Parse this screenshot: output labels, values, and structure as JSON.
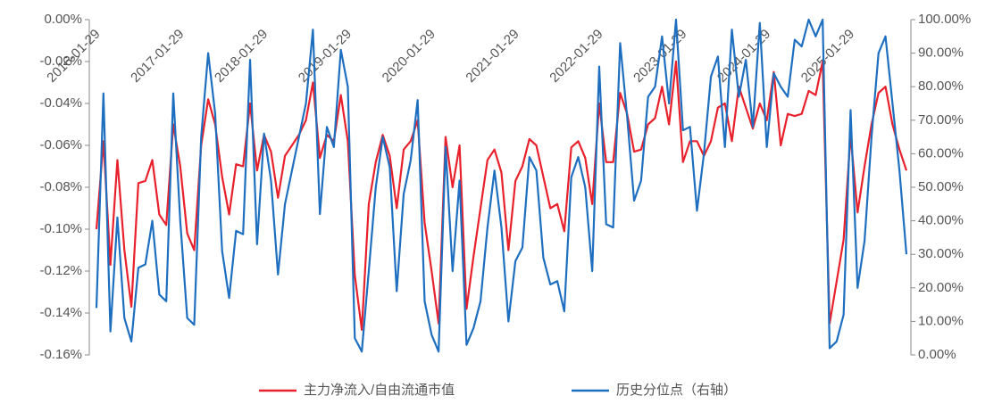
{
  "chart_data": {
    "type": "line",
    "categories": [
      "2016-01-29",
      null,
      null,
      null,
      null,
      null,
      null,
      null,
      null,
      null,
      null,
      null,
      "2017-01-29",
      null,
      null,
      null,
      null,
      null,
      null,
      null,
      null,
      null,
      null,
      null,
      "2018-01-29",
      null,
      null,
      null,
      null,
      null,
      null,
      null,
      null,
      null,
      null,
      null,
      "2019-01-29",
      null,
      null,
      null,
      null,
      null,
      null,
      null,
      null,
      null,
      null,
      null,
      "2020-01-29",
      null,
      null,
      null,
      null,
      null,
      null,
      null,
      null,
      null,
      null,
      null,
      "2021-01-29",
      null,
      null,
      null,
      null,
      null,
      null,
      null,
      null,
      null,
      null,
      null,
      "2022-01-29",
      null,
      null,
      null,
      null,
      null,
      null,
      null,
      null,
      null,
      null,
      null,
      "2023-01-29",
      null,
      null,
      null,
      null,
      null,
      null,
      null,
      null,
      null,
      null,
      null,
      "2024-01-29",
      null,
      null,
      null,
      null,
      null,
      null,
      null,
      null,
      null,
      null,
      null,
      "2025-01-29",
      null,
      null,
      null,
      null,
      null,
      null,
      null,
      null
    ],
    "series": [
      {
        "name": "主力净流入/自由流通市值",
        "color": "#e8212c",
        "values": [
          -0.1,
          -0.058,
          -0.117,
          -0.067,
          -0.11,
          -0.137,
          -0.078,
          -0.077,
          -0.067,
          -0.093,
          -0.098,
          -0.05,
          -0.07,
          -0.102,
          -0.11,
          -0.06,
          -0.038,
          -0.05,
          -0.075,
          -0.093,
          -0.069,
          -0.07,
          -0.04,
          -0.072,
          -0.055,
          -0.063,
          -0.085,
          -0.065,
          -0.06,
          -0.055,
          -0.048,
          -0.03,
          -0.066,
          -0.055,
          -0.058,
          -0.036,
          -0.058,
          -0.122,
          -0.148,
          -0.088,
          -0.068,
          -0.055,
          -0.065,
          -0.09,
          -0.062,
          -0.058,
          -0.048,
          -0.097,
          -0.12,
          -0.145,
          -0.056,
          -0.08,
          -0.06,
          -0.138,
          -0.113,
          -0.09,
          -0.067,
          -0.062,
          -0.073,
          -0.11,
          -0.077,
          -0.07,
          -0.057,
          -0.06,
          -0.075,
          -0.09,
          -0.088,
          -0.101,
          -0.061,
          -0.058,
          -0.066,
          -0.088,
          -0.04,
          -0.068,
          -0.068,
          -0.035,
          -0.045,
          -0.063,
          -0.062,
          -0.05,
          -0.047,
          -0.032,
          -0.05,
          -0.02,
          -0.068,
          -0.058,
          -0.058,
          -0.065,
          -0.058,
          -0.042,
          -0.04,
          -0.058,
          -0.032,
          -0.042,
          -0.052,
          -0.04,
          -0.048,
          -0.025,
          -0.06,
          -0.045,
          -0.046,
          -0.045,
          -0.034,
          -0.036,
          -0.02,
          -0.145,
          -0.125,
          -0.105,
          -0.055,
          -0.092,
          -0.07,
          -0.05,
          -0.035,
          -0.032,
          -0.05,
          -0.062,
          -0.072
        ]
      },
      {
        "name": "历史分位点（右轴）",
        "color": "#1f6fc0",
        "axis": "y2",
        "values": [
          14,
          78,
          7,
          41,
          11,
          4,
          26,
          27,
          40,
          18,
          16,
          78,
          40,
          11,
          9,
          65,
          90,
          72,
          31,
          17,
          37,
          36,
          88,
          33,
          66,
          52,
          24,
          45,
          55,
          65,
          75,
          97,
          42,
          68,
          62,
          91,
          80,
          5,
          1,
          25,
          50,
          65,
          56,
          19,
          48,
          58,
          76,
          16,
          6,
          1,
          62,
          25,
          52,
          3,
          8,
          16,
          38,
          55,
          38,
          10,
          28,
          32,
          59,
          55,
          29,
          21,
          22,
          13,
          53,
          59,
          50,
          25,
          86,
          39,
          38,
          93,
          71,
          46,
          52,
          77,
          80,
          95,
          75,
          100,
          67,
          68,
          43,
          60,
          83,
          89,
          62,
          97,
          77,
          88,
          68,
          99,
          62,
          84,
          80,
          77,
          94,
          92,
          100,
          95,
          100,
          2,
          4,
          12,
          73,
          20,
          34,
          65,
          90,
          95,
          75,
          55,
          30
        ]
      }
    ],
    "ylim": [
      -0.16,
      0
    ],
    "yticks": [
      {
        "value": 0,
        "label": "0.00%"
      },
      {
        "value": -0.02,
        "label": "-0.02%"
      },
      {
        "value": -0.04,
        "label": "-0.04%"
      },
      {
        "value": -0.06,
        "label": "-0.06%"
      },
      {
        "value": -0.08,
        "label": "-0.08%"
      },
      {
        "value": -0.1,
        "label": "-0.10%"
      },
      {
        "value": -0.12,
        "label": "-0.12%"
      },
      {
        "value": -0.14,
        "label": "-0.14%"
      },
      {
        "value": -0.16,
        "label": "-0.16%"
      }
    ],
    "y2lim": [
      0,
      100
    ],
    "y2ticks": [
      {
        "value": 100,
        "label": "100.00%"
      },
      {
        "value": 90,
        "label": "90.00%"
      },
      {
        "value": 80,
        "label": "80.00%"
      },
      {
        "value": 70,
        "label": "70.00%"
      },
      {
        "value": 60,
        "label": "60.00%"
      },
      {
        "value": 50,
        "label": "50.00%"
      },
      {
        "value": 40,
        "label": "40.00%"
      },
      {
        "value": 30,
        "label": "30.00%"
      },
      {
        "value": 20,
        "label": "20.00%"
      },
      {
        "value": 10,
        "label": "10.00%"
      },
      {
        "value": 0,
        "label": "0.00%"
      }
    ],
    "legend": "bottom"
  }
}
